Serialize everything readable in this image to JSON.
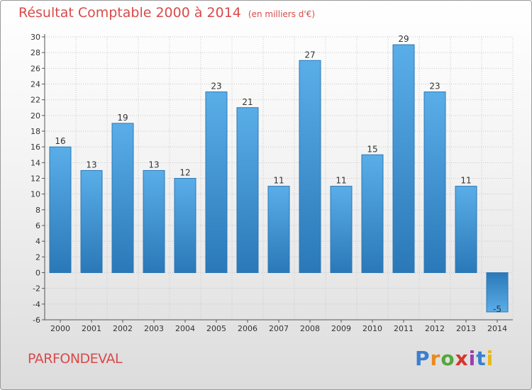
{
  "title": "Résultat Comptable 2000 à 2014",
  "subtitle": "(en milliers d'€)",
  "commune": "PARFONDEVAL",
  "logo": {
    "p": "P",
    "r": "r",
    "o": "o",
    "x": "x",
    "i": "i",
    "t": "t",
    "i2": "i"
  },
  "colors": {
    "bar_light": "#5aaee8",
    "bar_dark": "#2a78b8",
    "title": "#d94a4a",
    "grid": "#c8c8c8"
  },
  "chart_data": {
    "type": "bar",
    "title": "Résultat Comptable 2000 à 2014",
    "ylabel": "en milliers d'€",
    "categories": [
      "2000",
      "2001",
      "2002",
      "2003",
      "2004",
      "2005",
      "2006",
      "2007",
      "2008",
      "2009",
      "2010",
      "2011",
      "2012",
      "2013",
      "2014"
    ],
    "values": [
      16,
      13,
      19,
      13,
      12,
      23,
      21,
      11,
      27,
      11,
      15,
      29,
      23,
      11,
      -5
    ],
    "ylim": [
      -6,
      30
    ],
    "yticks": [
      -6,
      -4,
      -2,
      0,
      2,
      4,
      6,
      8,
      10,
      12,
      14,
      16,
      18,
      20,
      22,
      24,
      26,
      28,
      30
    ],
    "grid": true
  }
}
